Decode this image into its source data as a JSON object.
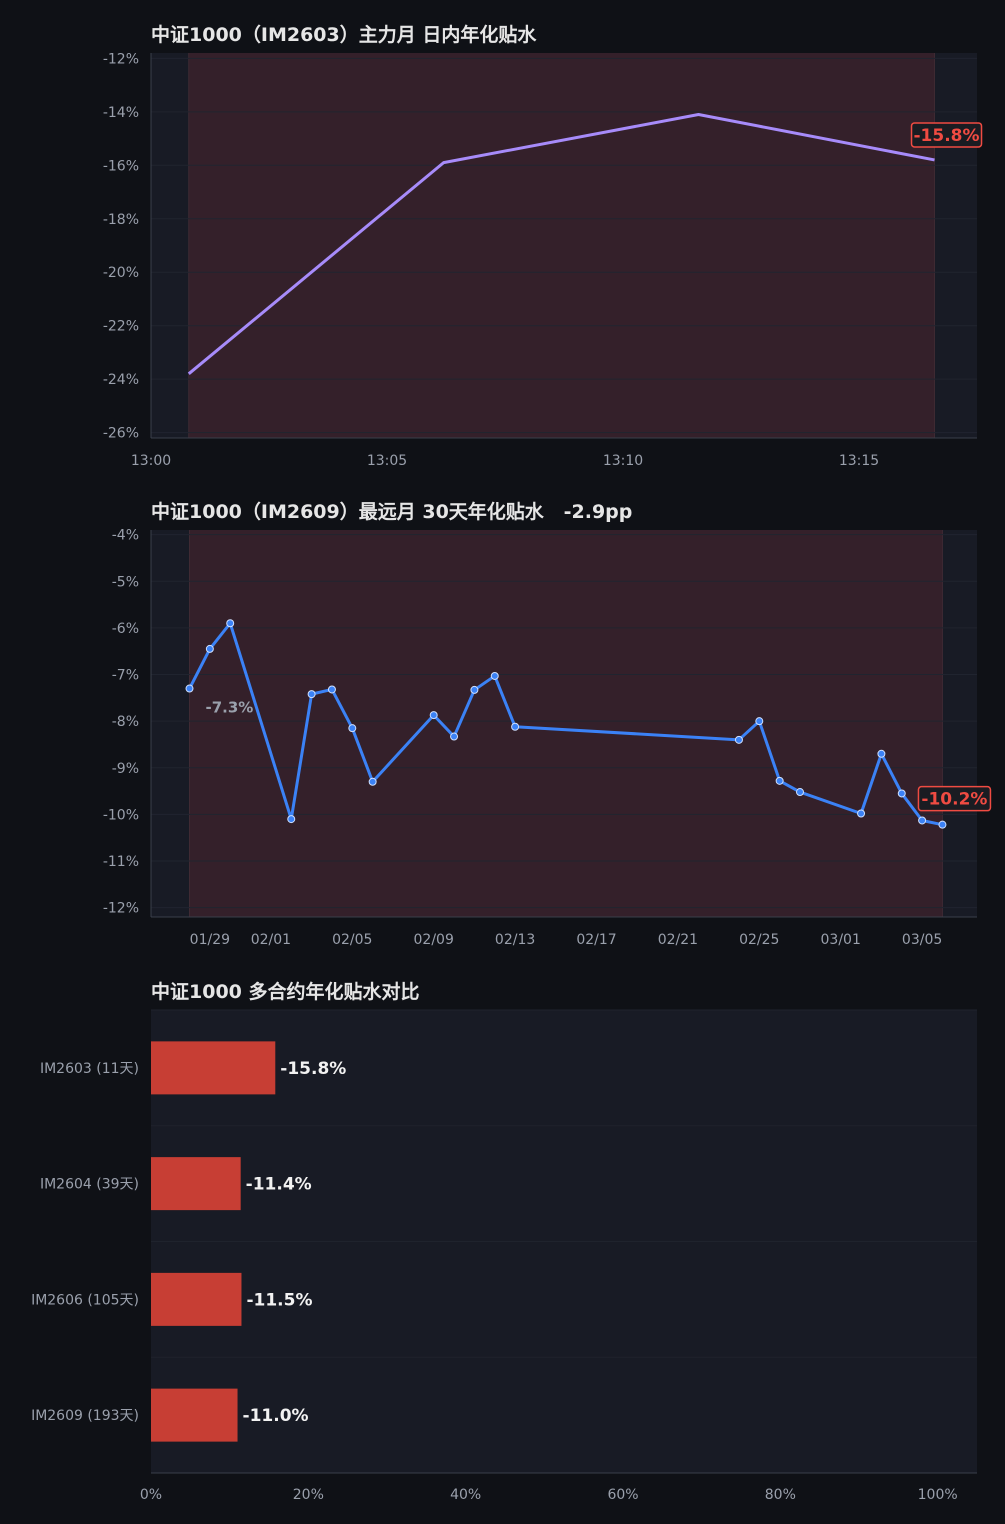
{
  "chart_data": [
    {
      "type": "line",
      "title": "中证1000（IM2603）主力月 日内年化贴水",
      "x_ticks": [
        "13:00",
        "13:05",
        "13:10",
        "13:15"
      ],
      "x_range_minutes": [
        0,
        17.5
      ],
      "y_ticks": [
        "-12%",
        "-14%",
        "-16%",
        "-18%",
        "-20%",
        "-22%",
        "-24%",
        "-26%"
      ],
      "ylim": [
        -26.2,
        -11.8
      ],
      "series": [
        {
          "color": "#a78bfa",
          "points": [
            {
              "t": "13:00:48",
              "value": -23.8
            },
            {
              "t": "13:06:12",
              "value": -15.9
            },
            {
              "t": "13:11:36",
              "value": -14.1
            },
            {
              "t": "13:16:36",
              "value": -15.8
            }
          ]
        }
      ],
      "shade_band": {
        "from_time": "13:00:48",
        "to_time": "13:16:36"
      },
      "last_value_label": "-15.8%"
    },
    {
      "type": "line",
      "title": "中证1000（IM2609）最远月 30天年化贴水   -2.9pp",
      "x_ticks": [
        "01/29",
        "02/01",
        "02/05",
        "02/09",
        "02/13",
        "02/17",
        "02/21",
        "02/25",
        "03/01",
        "03/05"
      ],
      "ylim": [
        -12.2,
        -3.9
      ],
      "y_ticks": [
        "-4%",
        "-5%",
        "-6%",
        "-7%",
        "-8%",
        "-9%",
        "-10%",
        "-11%",
        "-12%"
      ],
      "series": [
        {
          "color": "#3b82f6",
          "points": [
            {
              "date": "01/28",
              "value": -7.3
            },
            {
              "date": "01/29",
              "value": -6.45
            },
            {
              "date": "01/30",
              "value": -5.9
            },
            {
              "date": "02/02",
              "value": -10.1
            },
            {
              "date": "02/03",
              "value": -7.42
            },
            {
              "date": "02/04",
              "value": -7.32
            },
            {
              "date": "02/05",
              "value": -8.15
            },
            {
              "date": "02/06",
              "value": -9.3
            },
            {
              "date": "02/09",
              "value": -7.87
            },
            {
              "date": "02/10",
              "value": -8.33
            },
            {
              "date": "02/11",
              "value": -7.33
            },
            {
              "date": "02/12",
              "value": -7.03
            },
            {
              "date": "02/13",
              "value": -8.12
            },
            {
              "date": "02/24",
              "value": -8.4
            },
            {
              "date": "02/25",
              "value": -8.0
            },
            {
              "date": "02/26",
              "value": -9.28
            },
            {
              "date": "02/27",
              "value": -9.52
            },
            {
              "date": "03/02",
              "value": -9.98
            },
            {
              "date": "03/03",
              "value": -8.7
            },
            {
              "date": "03/04",
              "value": -9.55
            },
            {
              "date": "03/05",
              "value": -10.13
            },
            {
              "date": "03/06",
              "value": -10.22
            }
          ]
        }
      ],
      "shade_band": {
        "from_date": "01/28",
        "to_date": "03/06"
      },
      "first_value_label": "-7.3%",
      "last_value_label": "-10.2%"
    },
    {
      "type": "bar",
      "orientation": "horizontal",
      "title": "中证1000 多合约年化贴水对比",
      "categories": [
        "IM2603 (11天)",
        "IM2604 (39天)",
        "IM2606 (105天)",
        "IM2609 (193天)"
      ],
      "values": [
        15.8,
        11.4,
        11.5,
        11.0
      ],
      "value_labels": [
        "-15.8%",
        "-11.4%",
        "-11.5%",
        "-11.0%"
      ],
      "x_ticks": [
        "0%",
        "20%",
        "40%",
        "60%",
        "80%",
        "100%"
      ],
      "xlim": [
        0,
        105
      ],
      "bar_color": "#c73e34"
    }
  ],
  "colors": {
    "page_bg": "#0f1116",
    "panel_bg": "#181b25",
    "shade": "#34202a",
    "callout": "#ef4b42",
    "tick_text": "#9aa0ac"
  }
}
